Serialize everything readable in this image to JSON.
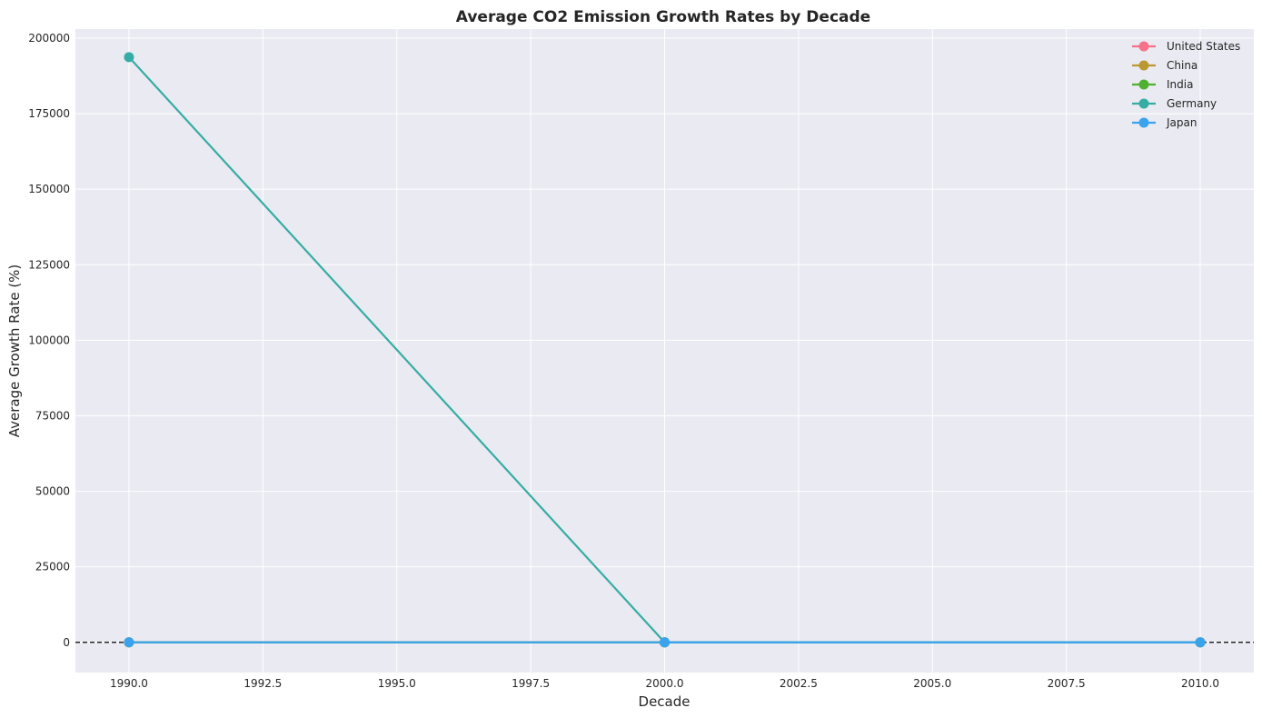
{
  "chart_data": {
    "type": "line",
    "title": "Average CO2 Emission Growth Rates by Decade",
    "xlabel": "Decade",
    "ylabel": "Average Growth Rate (%)",
    "xlim": [
      1989,
      2011
    ],
    "ylim": [
      -10000,
      203000
    ],
    "x_ticks": [
      1990,
      1992.5,
      1995,
      1997.5,
      2000,
      2002.5,
      2005,
      2007.5,
      2010
    ],
    "x_tick_labels": [
      "1990.0",
      "1992.5",
      "1995.0",
      "1997.5",
      "2000.0",
      "2002.5",
      "2005.0",
      "2007.5",
      "2010.0"
    ],
    "y_ticks": [
      0,
      25000,
      50000,
      75000,
      100000,
      125000,
      150000,
      175000,
      200000
    ],
    "y_tick_labels": [
      "0",
      "25000",
      "50000",
      "75000",
      "100000",
      "125000",
      "150000",
      "175000",
      "200000"
    ],
    "grid": true,
    "legend_position": "top-right",
    "reference_line": {
      "y": 0,
      "style": "dashed",
      "color": "#000000"
    },
    "x": [
      1990,
      2000,
      2010
    ],
    "series": [
      {
        "name": "United States",
        "color": "#f77189",
        "values": [
          0.3,
          -1.2,
          -1.5
        ]
      },
      {
        "name": "China",
        "color": "#bb9832",
        "values": [
          5.2,
          9.8,
          3.1
        ]
      },
      {
        "name": "India",
        "color": "#50b131",
        "values": [
          6.1,
          5.7,
          5.4
        ]
      },
      {
        "name": "Germany",
        "color": "#36ada4",
        "values": [
          193700,
          0.5,
          -1.3
        ]
      },
      {
        "name": "Japan",
        "color": "#3ba3ec",
        "values": [
          1.1,
          -0.4,
          -0.9
        ]
      }
    ]
  }
}
